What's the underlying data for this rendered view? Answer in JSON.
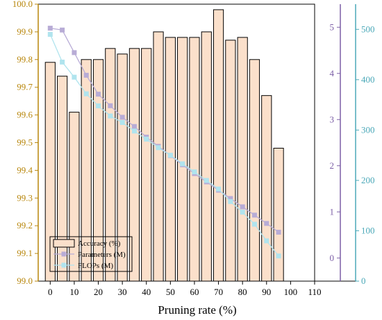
{
  "chart_data": {
    "type": "bar",
    "xlabel": "Pruning rate (%)",
    "x_ticks": [
      0,
      10,
      20,
      30,
      40,
      50,
      60,
      70,
      80,
      90,
      100,
      110
    ],
    "xlim": [
      -5,
      110
    ],
    "x": [
      0,
      5,
      10,
      15,
      20,
      25,
      30,
      35,
      40,
      45,
      50,
      55,
      60,
      65,
      70,
      75,
      80,
      85,
      90,
      95
    ],
    "legend_position": "bottom-left",
    "axes": {
      "left": {
        "ylim": [
          99.0,
          100.0
        ],
        "ticks": [
          "99.0",
          "99.1",
          "99.2",
          "99.3",
          "99.4",
          "99.5",
          "99.6",
          "99.7",
          "99.8",
          "99.9",
          "100.0"
        ],
        "color": "#b8860b"
      },
      "mid": {
        "ylim": [
          -0.5,
          5.5
        ],
        "ticks": [
          "0",
          "1",
          "2",
          "3",
          "4",
          "5"
        ],
        "color": "#7b5ea6"
      },
      "right": {
        "ylim": [
          0,
          550
        ],
        "ticks": [
          "0",
          "100",
          "200",
          "300",
          "400",
          "500"
        ],
        "color": "#4aa8b8"
      }
    },
    "series": [
      {
        "name": "Accuracy (%)",
        "kind": "bar",
        "axis": "left",
        "color": "#fbe0cb",
        "values": [
          99.79,
          99.74,
          99.61,
          99.8,
          99.8,
          99.84,
          99.82,
          99.84,
          99.84,
          99.9,
          99.88,
          99.88,
          99.88,
          99.9,
          99.98,
          99.87,
          99.88,
          99.8,
          99.67,
          99.48
        ]
      },
      {
        "name": "Parameters (M)",
        "kind": "line",
        "axis": "mid",
        "color": "#b8acd6",
        "values": [
          4.98,
          4.94,
          4.45,
          3.96,
          3.55,
          3.3,
          3.05,
          2.85,
          2.62,
          2.42,
          2.22,
          2.02,
          1.83,
          1.65,
          1.47,
          1.29,
          1.11,
          0.93,
          0.75,
          0.56
        ]
      },
      {
        "name": "FLOPs (M)",
        "kind": "line",
        "axis": "right",
        "color": "#b0e4ee",
        "values": [
          490,
          435,
          405,
          372,
          348,
          328,
          315,
          298,
          282,
          265,
          250,
          233,
          217,
          200,
          183,
          158,
          137,
          113,
          80,
          50
        ]
      }
    ]
  }
}
